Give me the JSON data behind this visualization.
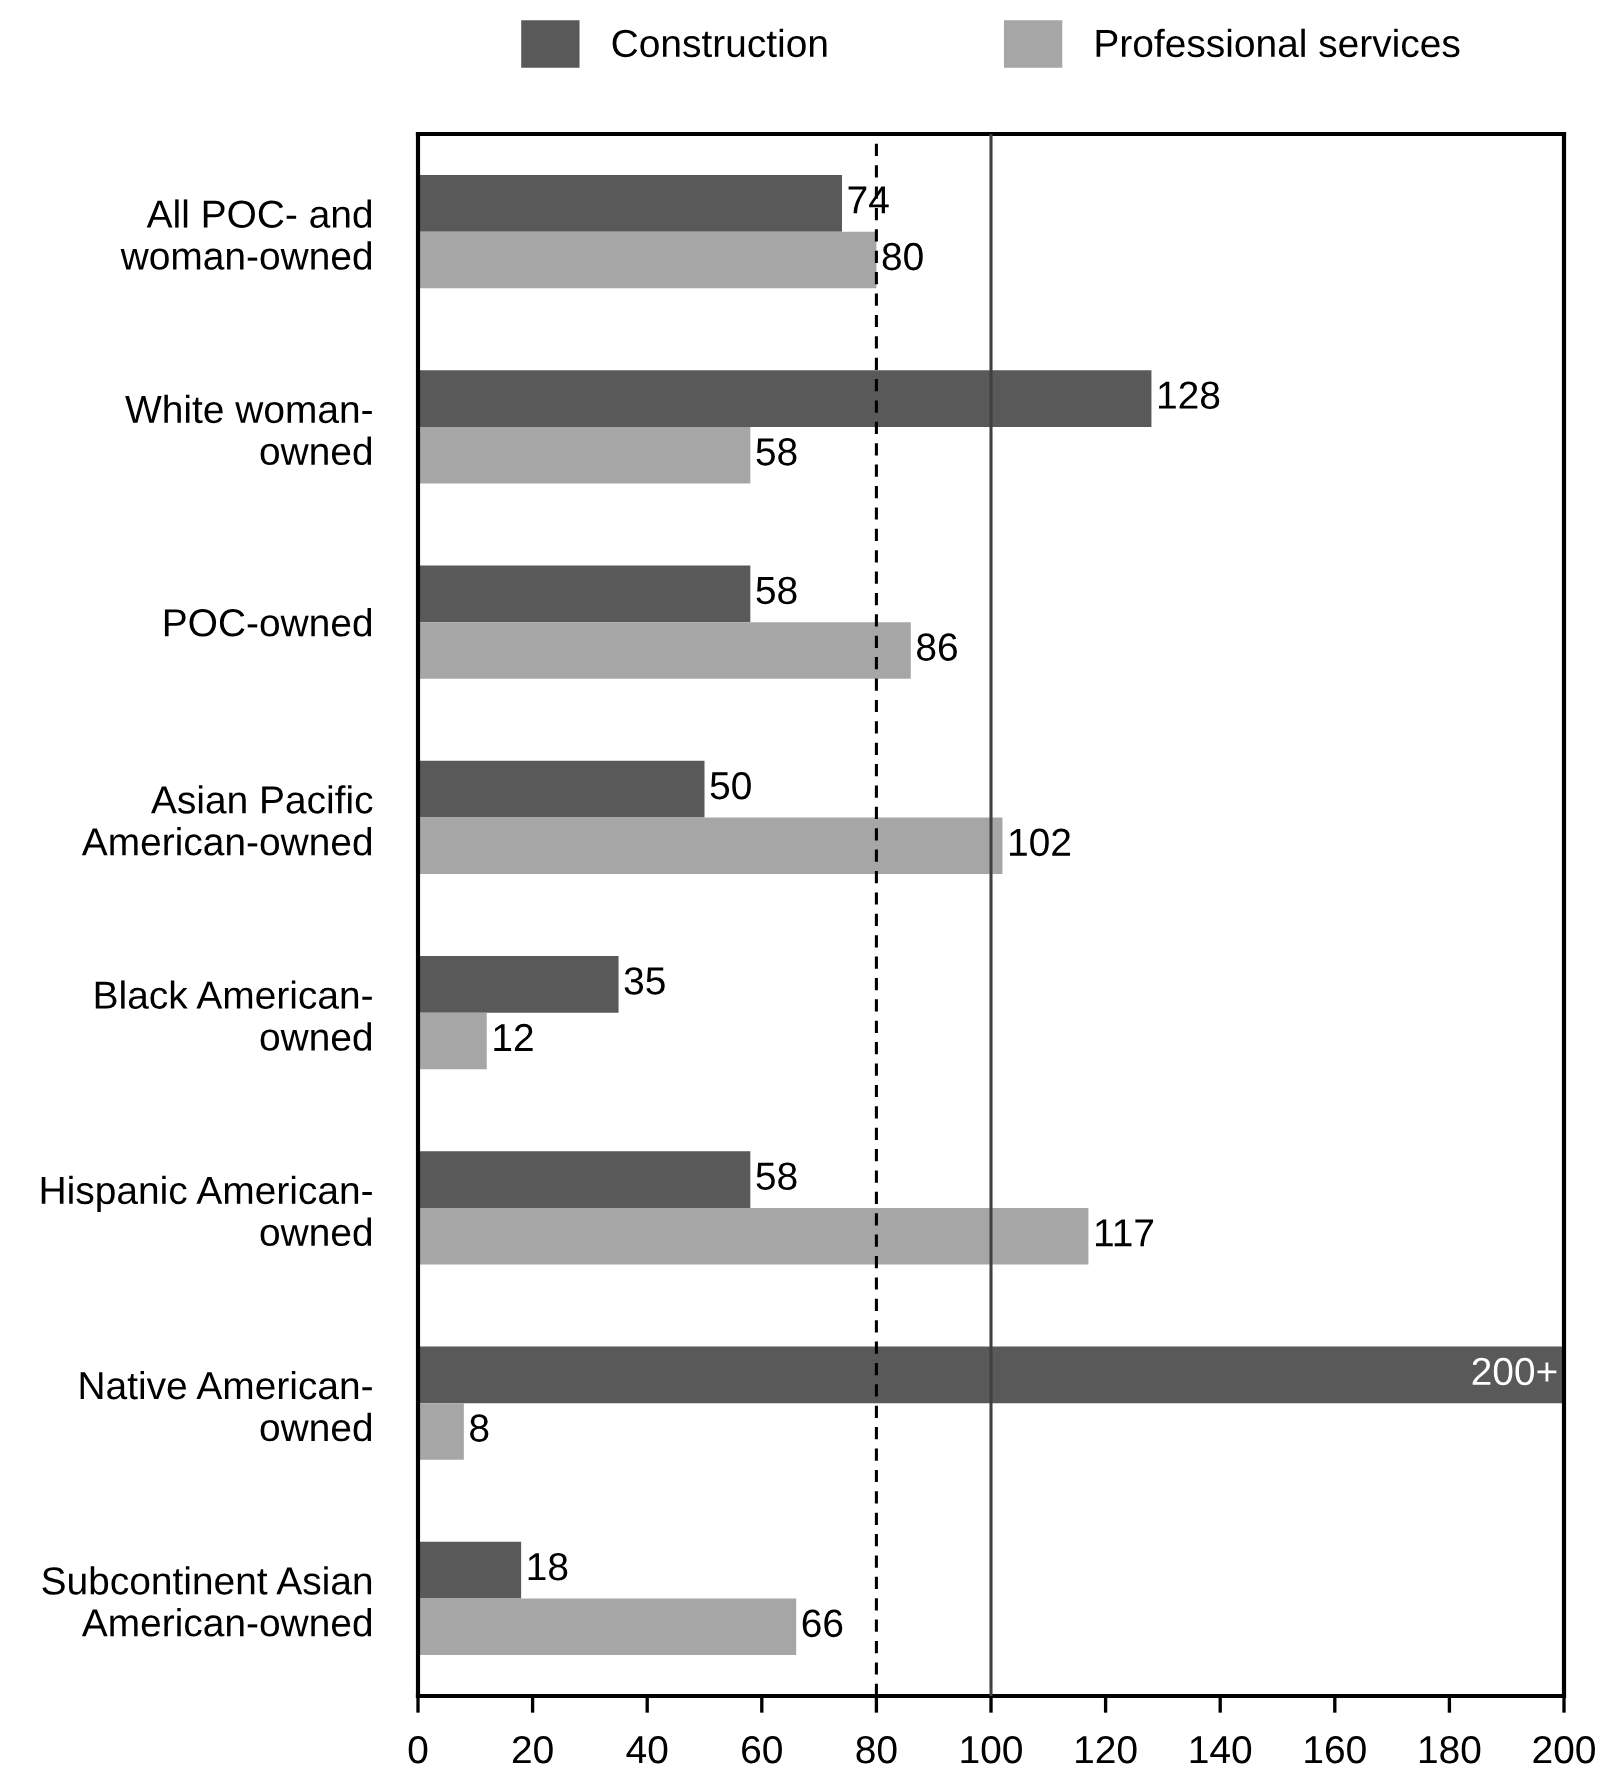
{
  "chart_data": {
    "type": "bar",
    "orientation": "horizontal",
    "categories": [
      "All POC- and\nwoman-owned",
      "White woman-\nowned",
      "POC-owned",
      "Asian Pacific\nAmerican-owned",
      "Black American-\nowned",
      "Hispanic American-\nowned",
      "Native American-\nowned",
      "Subcontinent Asian\nAmerican-owned"
    ],
    "series": [
      {
        "name": "Construction",
        "color": "#595959",
        "values": [
          74,
          128,
          58,
          50,
          35,
          58,
          200,
          18
        ],
        "value_labels": [
          "74",
          "128",
          "58",
          "50",
          "35",
          "58",
          "200+",
          "18"
        ]
      },
      {
        "name": "Professional services",
        "color": "#a6a6a6",
        "values": [
          80,
          58,
          86,
          102,
          12,
          117,
          8,
          66
        ],
        "value_labels": [
          "80",
          "58",
          "86",
          "102",
          "12",
          "117",
          "8",
          "66"
        ]
      }
    ],
    "xlim": [
      0,
      200
    ],
    "xticks": [
      0,
      20,
      40,
      60,
      80,
      100,
      120,
      140,
      160,
      180,
      200
    ],
    "ref_lines": [
      {
        "axis": "x",
        "value": 80,
        "color": "#000000",
        "line_style": "dashed"
      },
      {
        "axis": "x",
        "value": 100,
        "color": "#404040",
        "line_style": "solid"
      }
    ],
    "legend": "top",
    "grid": false
  }
}
